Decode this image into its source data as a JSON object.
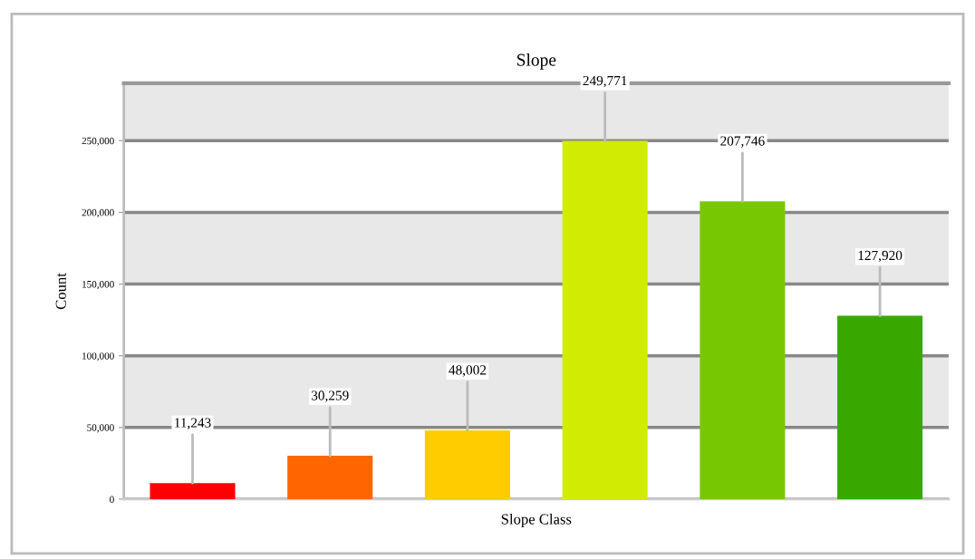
{
  "chart_data": {
    "type": "bar",
    "title": "Slope",
    "xlabel": "Slope Class",
    "ylabel": "Count",
    "categories": [
      null,
      null,
      null,
      null,
      null,
      null
    ],
    "values": [
      11243,
      30259,
      48002,
      249771,
      207746,
      127920
    ],
    "value_labels": [
      "11,243",
      "30,259",
      "48,002",
      "249,771",
      "207,746",
      "127,920"
    ],
    "colors": [
      "#ff0000",
      "#ff6600",
      "#ffcc00",
      "#d2ec00",
      "#78c800",
      "#38a800"
    ],
    "ylim": [
      0,
      290000
    ],
    "yticks": [
      0,
      {
        "value": 50000,
        "label": "50,000"
      },
      {
        "value": 100000,
        "label": "100,000"
      },
      {
        "value": 150000,
        "label": "150,000"
      },
      {
        "value": 200000,
        "label": "200,000"
      },
      {
        "value": 250000,
        "label": "250,000"
      }
    ],
    "grid": "y",
    "legend": false
  }
}
